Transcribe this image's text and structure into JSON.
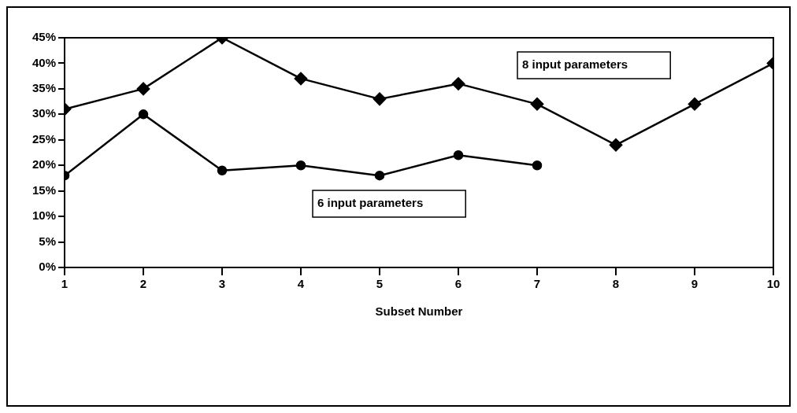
{
  "chart_data": {
    "type": "line",
    "xlabel": "Subset Number",
    "x": [
      1,
      2,
      3,
      4,
      5,
      6,
      7,
      8,
      9,
      10
    ],
    "xlim": [
      1,
      10
    ],
    "xticks": [
      1,
      2,
      3,
      4,
      5,
      6,
      7,
      8,
      9,
      10
    ],
    "ylim": [
      0,
      45
    ],
    "yticks": [
      {
        "value": 0,
        "label": "0%"
      },
      {
        "value": 5,
        "label": "5%"
      },
      {
        "value": 10,
        "label": "10%"
      },
      {
        "value": 15,
        "label": "15%"
      },
      {
        "value": 20,
        "label": "20%"
      },
      {
        "value": 25,
        "label": "25%"
      },
      {
        "value": 30,
        "label": "30%"
      },
      {
        "value": 35,
        "label": "35%"
      },
      {
        "value": 40,
        "label": "40%"
      },
      {
        "value": 45,
        "label": "45%"
      }
    ],
    "series": [
      {
        "name": "8 input parameters",
        "color": "#000000",
        "marker": "diamond",
        "values": [
          31,
          35,
          45,
          37,
          33,
          36,
          32,
          24,
          32,
          40
        ]
      },
      {
        "name": "6 input parameters",
        "color": "#000000",
        "marker": "circle",
        "values": [
          18,
          30,
          19,
          20,
          18,
          22,
          20,
          null,
          null,
          null
        ]
      }
    ]
  }
}
